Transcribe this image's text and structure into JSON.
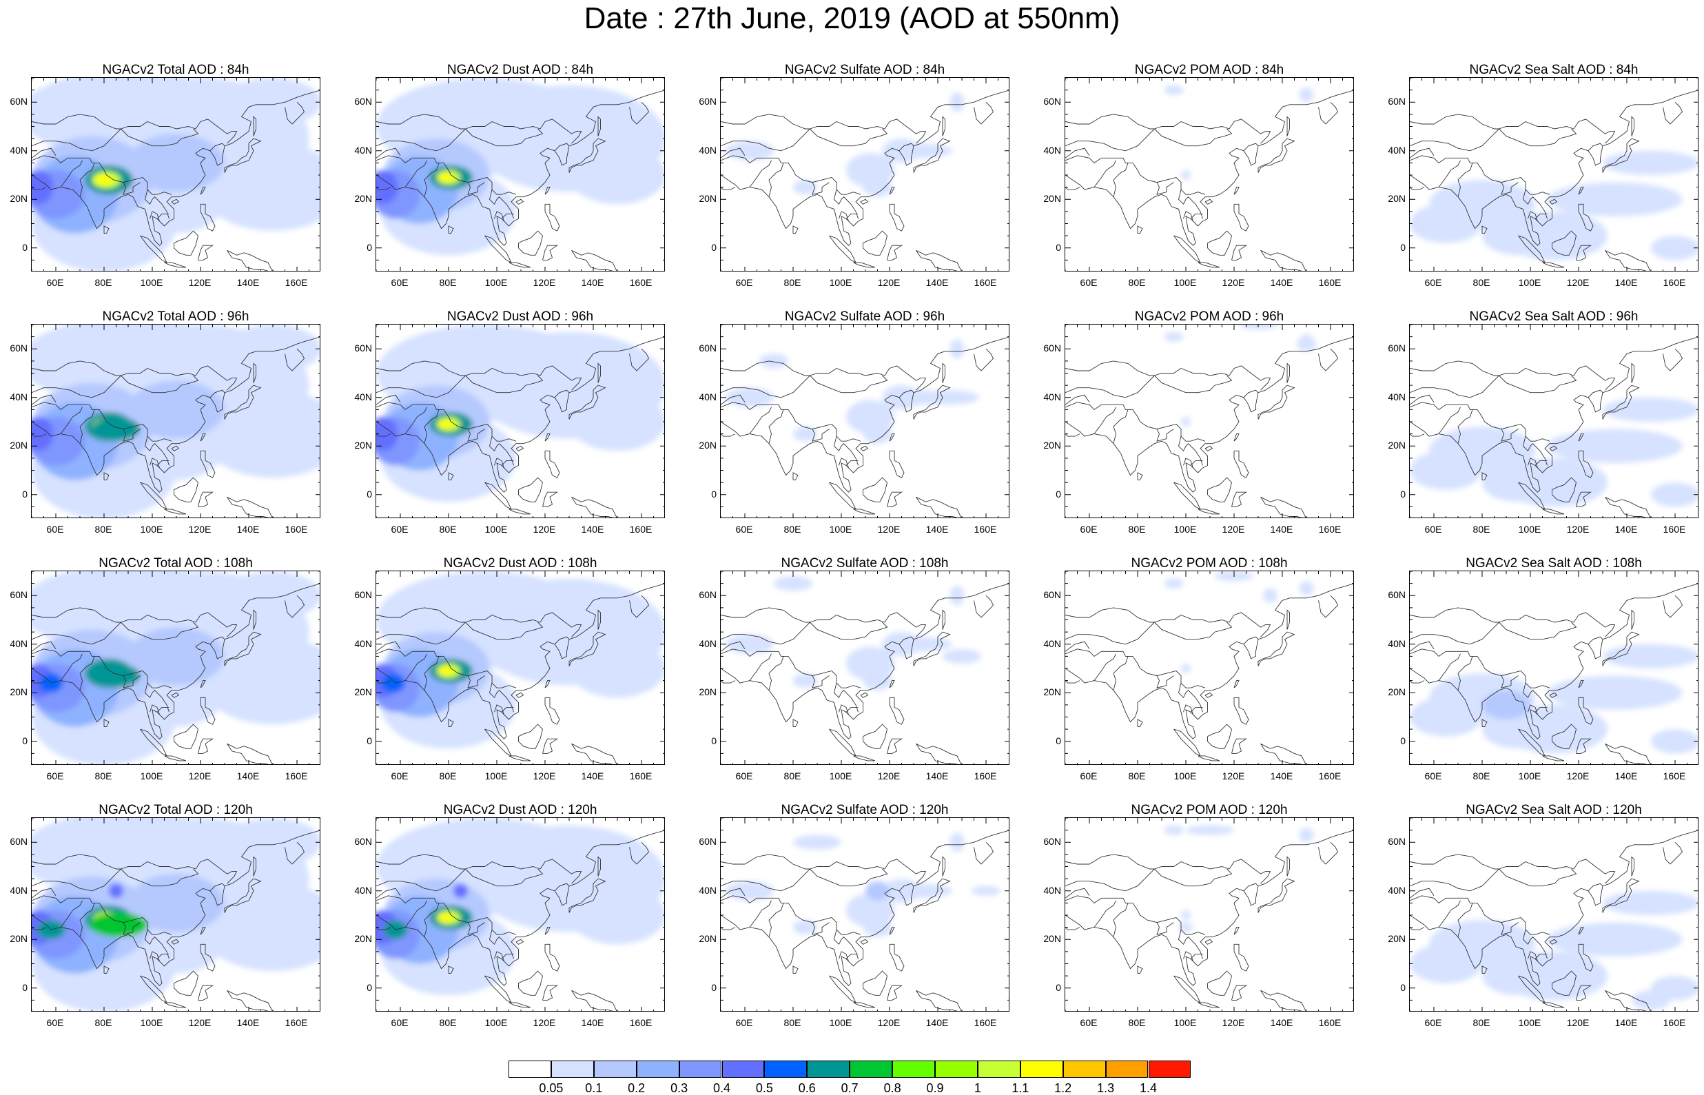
{
  "title": "Date : 27th June, 2019 (AOD at 550nm)",
  "lat_ticks": [
    "60N",
    "40N",
    "20N",
    "0"
  ],
  "lat_values": [
    60,
    40,
    20,
    0
  ],
  "lon_ticks": [
    "60E",
    "80E",
    "100E",
    "120E",
    "140E",
    "160E"
  ],
  "lon_values": [
    60,
    80,
    100,
    120,
    140,
    160
  ],
  "map_extent": {
    "lon_min": 50,
    "lon_max": 170,
    "lat_min": -10,
    "lat_max": 70
  },
  "columns": [
    {
      "key": "total",
      "label": "NGACv2 Total AOD"
    },
    {
      "key": "dust",
      "label": "NGACv2 Dust AOD"
    },
    {
      "key": "sulfate",
      "label": "NGACv2 Sulfate AOD"
    },
    {
      "key": "pom",
      "label": "NGACv2 POM AOD"
    },
    {
      "key": "seasalt",
      "label": "NGACv2 Sea Salt AOD"
    }
  ],
  "panels": [
    [
      "NGACv2 Total AOD : 84h",
      "NGACv2 Dust AOD : 84h",
      "NGACv2 Sulfate AOD : 84h",
      "NGACv2 POM AOD : 84h",
      "NGACv2 Sea Salt AOD : 84h"
    ],
    [
      "NGACv2 Total AOD : 96h",
      "NGACv2 Dust AOD : 96h",
      "NGACv2 Sulfate AOD : 96h",
      "NGACv2 POM AOD : 96h",
      "NGACv2 Sea Salt AOD : 96h"
    ],
    [
      "NGACv2 Total AOD : 108h",
      "NGACv2 Dust AOD : 108h",
      "NGACv2 Sulfate AOD : 108h",
      "NGACv2 POM AOD : 108h",
      "NGACv2 Sea Salt AOD : 108h"
    ],
    [
      "NGACv2 Total AOD : 120h",
      "NGACv2 Dust AOD : 120h",
      "NGACv2 Sulfate AOD : 120h",
      "NGACv2 POM AOD : 120h",
      "NGACv2 Sea Salt  AOD : 120h"
    ]
  ],
  "colorbar": {
    "colors": [
      "#ffffff",
      "#d6e2ff",
      "#b5c9ff",
      "#8eb2ff",
      "#7f96ff",
      "#6370ff",
      "#0063ff",
      "#009696",
      "#00c633",
      "#63ff00",
      "#96ff00",
      "#c6ff33",
      "#ffff00",
      "#ffc600",
      "#ffa000",
      "#ff7c00",
      "#ff1900"
    ],
    "labels": [
      "0.05",
      "0.1",
      "0.2",
      "0.3",
      "0.4",
      "0.5",
      "0.6",
      "0.7",
      "0.8",
      "0.9",
      "1",
      "1.1",
      "1.2",
      "1.3",
      "1.4"
    ]
  }
}
